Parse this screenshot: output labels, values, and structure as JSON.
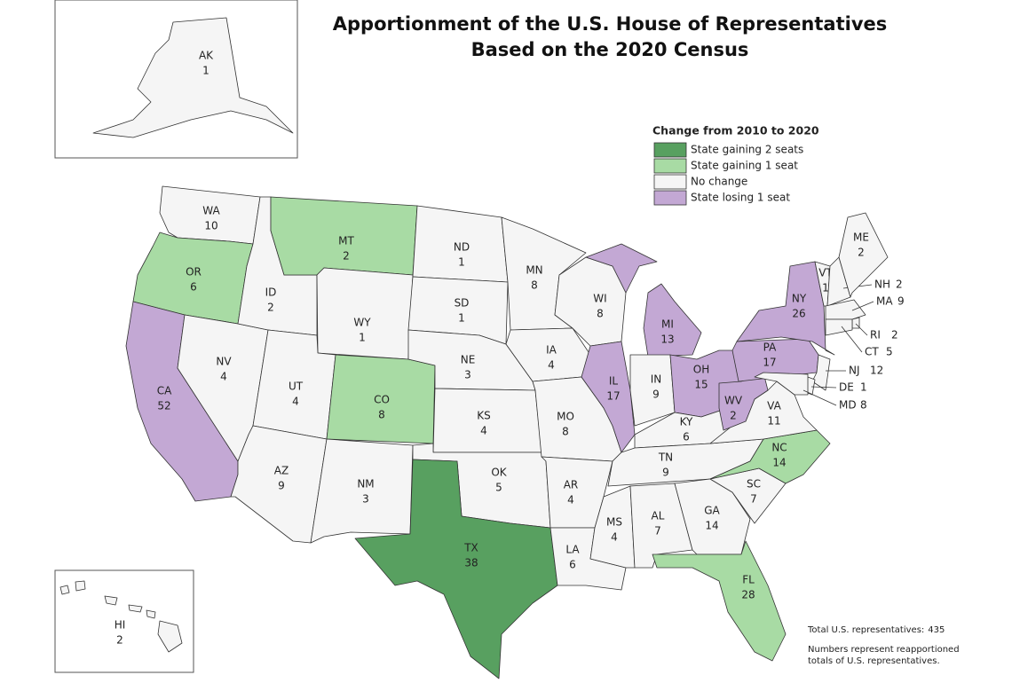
{
  "title_lines": [
    "Apportionment of the U.S. House of Representatives",
    "Based on the 2020 Census"
  ],
  "legend": {
    "title": "Change from 2010 to 2020",
    "items": [
      {
        "label": "State gaining 2 seats",
        "color": "#58a060"
      },
      {
        "label": "State gaining 1 seat",
        "color": "#a8dba4"
      },
      {
        "label": "No change",
        "color": "#f5f5f5"
      },
      {
        "label": "State losing 1 seat",
        "color": "#c3a8d4"
      }
    ]
  },
  "states": [
    {
      "abbr": "AK",
      "seats": 1,
      "color": "#f5f5f5"
    },
    {
      "abbr": "HI",
      "seats": 2,
      "color": "#f5f5f5"
    },
    {
      "abbr": "WA",
      "seats": 10,
      "color": "#f5f5f5"
    },
    {
      "abbr": "OR",
      "seats": 6,
      "color": "#a8dba4"
    },
    {
      "abbr": "CA",
      "seats": 52,
      "color": "#c3a8d4"
    },
    {
      "abbr": "NV",
      "seats": 4,
      "color": "#f5f5f5"
    },
    {
      "abbr": "ID",
      "seats": 2,
      "color": "#f5f5f5"
    },
    {
      "abbr": "MT",
      "seats": 2,
      "color": "#a8dba4"
    },
    {
      "abbr": "WY",
      "seats": 1,
      "color": "#f5f5f5"
    },
    {
      "abbr": "UT",
      "seats": 4,
      "color": "#f5f5f5"
    },
    {
      "abbr": "AZ",
      "seats": 9,
      "color": "#f5f5f5"
    },
    {
      "abbr": "CO",
      "seats": 8,
      "color": "#a8dba4"
    },
    {
      "abbr": "NM",
      "seats": 3,
      "color": "#f5f5f5"
    },
    {
      "abbr": "ND",
      "seats": 1,
      "color": "#f5f5f5"
    },
    {
      "abbr": "SD",
      "seats": 1,
      "color": "#f5f5f5"
    },
    {
      "abbr": "NE",
      "seats": 3,
      "color": "#f5f5f5"
    },
    {
      "abbr": "KS",
      "seats": 4,
      "color": "#f5f5f5"
    },
    {
      "abbr": "OK",
      "seats": 5,
      "color": "#f5f5f5"
    },
    {
      "abbr": "TX",
      "seats": 38,
      "color": "#58a060"
    },
    {
      "abbr": "MN",
      "seats": 8,
      "color": "#f5f5f5"
    },
    {
      "abbr": "IA",
      "seats": 4,
      "color": "#f5f5f5"
    },
    {
      "abbr": "MO",
      "seats": 8,
      "color": "#f5f5f5"
    },
    {
      "abbr": "AR",
      "seats": 4,
      "color": "#f5f5f5"
    },
    {
      "abbr": "LA",
      "seats": 6,
      "color": "#f5f5f5"
    },
    {
      "abbr": "WI",
      "seats": 8,
      "color": "#f5f5f5"
    },
    {
      "abbr": "IL",
      "seats": 17,
      "color": "#c3a8d4"
    },
    {
      "abbr": "MI",
      "seats": 13,
      "color": "#c3a8d4"
    },
    {
      "abbr": "IN",
      "seats": 9,
      "color": "#f5f5f5"
    },
    {
      "abbr": "OH",
      "seats": 15,
      "color": "#c3a8d4"
    },
    {
      "abbr": "KY",
      "seats": 6,
      "color": "#f5f5f5"
    },
    {
      "abbr": "TN",
      "seats": 9,
      "color": "#f5f5f5"
    },
    {
      "abbr": "MS",
      "seats": 4,
      "color": "#f5f5f5"
    },
    {
      "abbr": "AL",
      "seats": 7,
      "color": "#f5f5f5"
    },
    {
      "abbr": "GA",
      "seats": 14,
      "color": "#f5f5f5"
    },
    {
      "abbr": "FL",
      "seats": 28,
      "color": "#a8dba4"
    },
    {
      "abbr": "SC",
      "seats": 7,
      "color": "#f5f5f5"
    },
    {
      "abbr": "NC",
      "seats": 14,
      "color": "#a8dba4"
    },
    {
      "abbr": "VA",
      "seats": 11,
      "color": "#f5f5f5"
    },
    {
      "abbr": "WV",
      "seats": 2,
      "color": "#c3a8d4"
    },
    {
      "abbr": "PA",
      "seats": 17,
      "color": "#c3a8d4"
    },
    {
      "abbr": "NY",
      "seats": 26,
      "color": "#c3a8d4"
    },
    {
      "abbr": "VT",
      "seats": 1,
      "color": "#f5f5f5"
    },
    {
      "abbr": "NH",
      "seats": 2,
      "color": "#f5f5f5"
    },
    {
      "abbr": "ME",
      "seats": 2,
      "color": "#f5f5f5"
    },
    {
      "abbr": "MA",
      "seats": 9,
      "color": "#f5f5f5"
    },
    {
      "abbr": "RI",
      "seats": 2,
      "color": "#f5f5f5"
    },
    {
      "abbr": "CT",
      "seats": 5,
      "color": "#f5f5f5"
    },
    {
      "abbr": "NJ",
      "seats": 12,
      "color": "#f5f5f5"
    },
    {
      "abbr": "DE",
      "seats": 1,
      "color": "#f5f5f5"
    },
    {
      "abbr": "MD",
      "seats": 8,
      "color": "#f5f5f5"
    }
  ],
  "notes": {
    "total_label": "Total U.S. representatives:",
    "total": 435,
    "lines": [
      "Numbers represent reapportioned",
      "totals of U.S. representatives."
    ]
  }
}
